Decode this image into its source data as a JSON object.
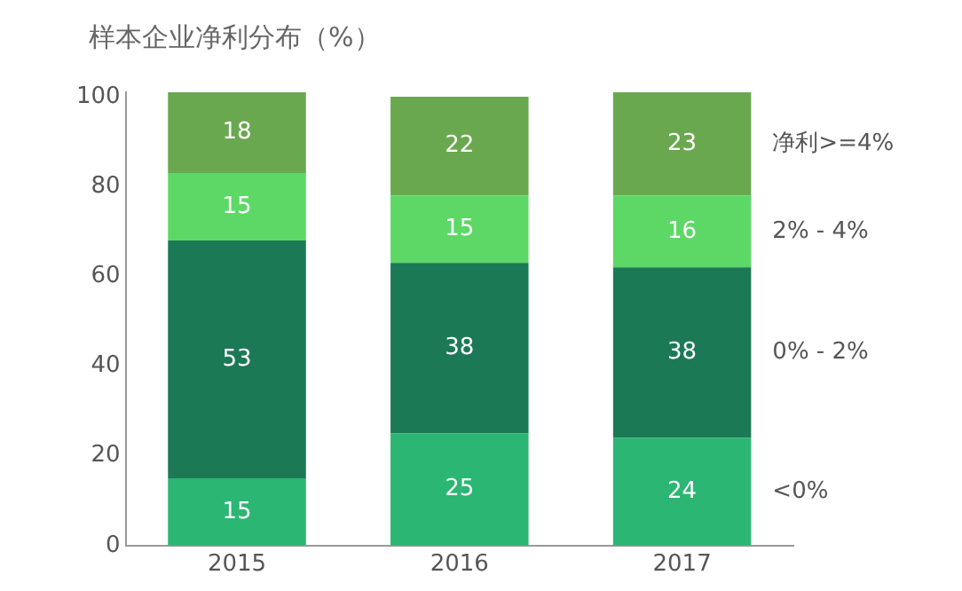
{
  "chart_data": {
    "type": "bar",
    "stacked": true,
    "title": "样本企业净利分布（%）",
    "categories": [
      "2015",
      "2016",
      "2017"
    ],
    "series": [
      {
        "name": "<0%",
        "color": "#2bb673",
        "values": [
          15,
          25,
          24
        ]
      },
      {
        "name": "0% - 2%",
        "color": "#1b7a55",
        "values": [
          53,
          38,
          38
        ]
      },
      {
        "name": "2% - 4%",
        "color": "#5dd866",
        "values": [
          15,
          15,
          16
        ]
      },
      {
        "name": "净利>=4%",
        "color": "#6aa84f",
        "values": [
          18,
          22,
          23
        ]
      }
    ],
    "ylim": [
      0,
      101
    ],
    "yticks": [
      0,
      20,
      40,
      60,
      80,
      100
    ],
    "grid": false,
    "legend": false,
    "data_labels": true
  }
}
